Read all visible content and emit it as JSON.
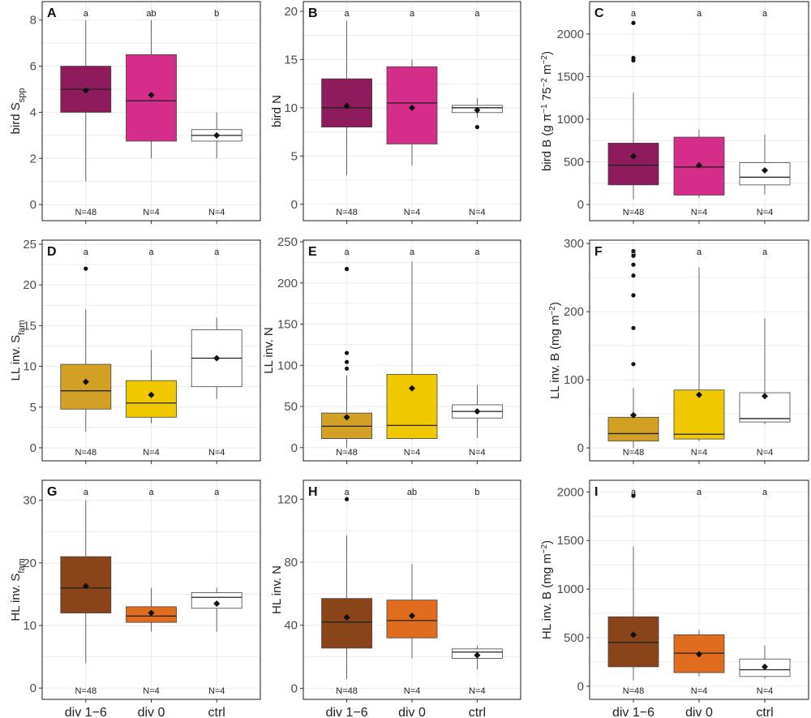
{
  "chart_data": [
    {
      "type": "box",
      "panel_label": "A",
      "ylabel": "bird S",
      "ylabel_sub": "spp",
      "ylabel_tail": "",
      "ylim": [
        -0.7,
        8.8
      ],
      "yticks": [
        0,
        2,
        4,
        6,
        8
      ],
      "ytick_labels": [
        "0",
        "2",
        "4",
        "6",
        "8"
      ],
      "groups": [
        {
          "label": "div 1−6",
          "n": "N=48",
          "letter": "a",
          "color": "#8e1b5b",
          "min": 1,
          "q1": 4,
          "median": 5,
          "q3": 6,
          "max": 8,
          "mean": 4.95,
          "outliers": []
        },
        {
          "label": "div 0",
          "n": "N=4",
          "letter": "ab",
          "color": "#d42d8a",
          "min": 2,
          "q1": 2.75,
          "median": 4.5,
          "q3": 6.5,
          "max": 8,
          "mean": 4.75,
          "outliers": []
        },
        {
          "label": "ctrl",
          "n": "N=4",
          "letter": "b",
          "color": "#ffffff",
          "min": 2,
          "q1": 2.75,
          "median": 3,
          "q3": 3.25,
          "max": 4,
          "mean": 3,
          "outliers": []
        }
      ]
    },
    {
      "type": "box",
      "panel_label": "B",
      "ylabel": "bird N",
      "ylabel_sub": "",
      "ylabel_tail": "",
      "ylim": [
        -1.7,
        21
      ],
      "yticks": [
        0,
        5,
        10,
        15,
        20
      ],
      "ytick_labels": [
        "0",
        "5",
        "10",
        "15",
        "20"
      ],
      "groups": [
        {
          "label": "div 1−6",
          "n": "N=48",
          "letter": "a",
          "color": "#8e1b5b",
          "min": 3,
          "q1": 8,
          "median": 10,
          "q3": 13,
          "max": 19,
          "mean": 10.2,
          "outliers": []
        },
        {
          "label": "div 0",
          "n": "N=4",
          "letter": "a",
          "color": "#d42d8a",
          "min": 4,
          "q1": 6.25,
          "median": 10.5,
          "q3": 14.25,
          "max": 15,
          "mean": 10,
          "outliers": []
        },
        {
          "label": "ctrl",
          "n": "N=4",
          "letter": "a",
          "color": "#ffffff",
          "min": 9,
          "q1": 9.5,
          "median": 10,
          "q3": 10.25,
          "max": 11,
          "mean": 9.75,
          "outliers": [
            8
          ]
        }
      ]
    },
    {
      "type": "box",
      "panel_label": "C",
      "ylabel": "bird B  (g π",
      "ylabel_sub": "",
      "ylabel_tail": "",
      "ylabel_parts": [
        "bird B  (g π",
        "−1",
        " 75",
        "−2",
        " m",
        "−2",
        ")"
      ],
      "ylim": [
        -190,
        2380
      ],
      "yticks": [
        0,
        500,
        1000,
        1500,
        2000
      ],
      "ytick_labels": [
        "0",
        "500",
        "1000",
        "1500",
        "2000"
      ],
      "groups": [
        {
          "label": "div 1−6",
          "n": "N=48",
          "letter": "a",
          "color": "#8e1b5b",
          "min": 60,
          "q1": 230,
          "median": 460,
          "q3": 720,
          "max": 1310,
          "mean": 565,
          "outliers": [
            1690,
            1720,
            2130
          ]
        },
        {
          "label": "div 0",
          "n": "N=4",
          "letter": "a",
          "color": "#d42d8a",
          "min": 80,
          "q1": 110,
          "median": 440,
          "q3": 790,
          "max": 880,
          "mean": 460,
          "outliers": []
        },
        {
          "label": "ctrl",
          "n": "N=4",
          "letter": "a",
          "color": "#ffffff",
          "min": 120,
          "q1": 230,
          "median": 320,
          "q3": 490,
          "max": 820,
          "mean": 400,
          "outliers": []
        }
      ]
    },
    {
      "type": "box",
      "panel_label": "D",
      "ylabel": "LL inv. S",
      "ylabel_sub": "fam",
      "ylabel_tail": "",
      "ylim": [
        -1.6,
        25.5
      ],
      "yticks": [
        0,
        5,
        10,
        15,
        20,
        25
      ],
      "ytick_labels": [
        "0",
        "5",
        "10",
        "15",
        "20",
        "25"
      ],
      "groups": [
        {
          "label": "div 1−6",
          "n": "N=48",
          "letter": "a",
          "color": "#d1a024",
          "min": 2,
          "q1": 4.75,
          "median": 7,
          "q3": 10.25,
          "max": 17,
          "mean": 8.1,
          "outliers": [
            22
          ]
        },
        {
          "label": "div 0",
          "n": "N=4",
          "letter": "a",
          "color": "#f0c800",
          "min": 3,
          "q1": 3.75,
          "median": 5.5,
          "q3": 8.25,
          "max": 12,
          "mean": 6.5,
          "outliers": []
        },
        {
          "label": "ctrl",
          "n": "N=4",
          "letter": "a",
          "color": "#ffffff",
          "min": 6,
          "q1": 7.5,
          "median": 11,
          "q3": 14.5,
          "max": 16,
          "mean": 11,
          "outliers": []
        }
      ]
    },
    {
      "type": "box",
      "panel_label": "E",
      "ylabel": "LL inv. N",
      "ylabel_sub": "",
      "ylabel_tail": "",
      "ylim": [
        -16,
        252
      ],
      "yticks": [
        0,
        50,
        100,
        150,
        200,
        250
      ],
      "ytick_labels": [
        "0",
        "50",
        "100",
        "150",
        "200",
        "250"
      ],
      "groups": [
        {
          "label": "div 1−6",
          "n": "N=48",
          "letter": "a",
          "color": "#d1a024",
          "min": 0,
          "q1": 11,
          "median": 26,
          "q3": 42,
          "max": 88,
          "mean": 37,
          "outliers": [
            96,
            104,
            115,
            217
          ]
        },
        {
          "label": "div 0",
          "n": "N=4",
          "letter": "a",
          "color": "#f0c800",
          "min": 10,
          "q1": 11,
          "median": 27,
          "q3": 89,
          "max": 226,
          "mean": 72,
          "outliers": []
        },
        {
          "label": "ctrl",
          "n": "N=4",
          "letter": "a",
          "color": "#ffffff",
          "min": 12,
          "q1": 36,
          "median": 44,
          "q3": 52,
          "max": 76,
          "mean": 44,
          "outliers": []
        }
      ]
    },
    {
      "type": "box",
      "panel_label": "F",
      "ylabel": "LL inv. B  (mg m",
      "ylabel_sub": "",
      "ylabel_tail": "",
      "ylabel_parts": [
        "LL inv. B  (mg m",
        "−2",
        ")"
      ],
      "ylim": [
        -19,
        305
      ],
      "yticks": [
        0,
        100,
        200,
        300
      ],
      "ytick_labels": [
        "0",
        "100",
        "200",
        "300"
      ],
      "groups": [
        {
          "label": "div 1−6",
          "n": "N=48",
          "letter": "a",
          "color": "#d1a024",
          "min": 0,
          "q1": 10,
          "median": 21,
          "q3": 45,
          "max": 88,
          "mean": 48,
          "outliers": [
            123,
            176,
            224,
            253,
            269,
            282,
            289
          ]
        },
        {
          "label": "div 0",
          "n": "N=4",
          "letter": "a",
          "color": "#f0c800",
          "min": 10,
          "q1": 13,
          "median": 20,
          "q3": 85,
          "max": 265,
          "mean": 78,
          "outliers": []
        },
        {
          "label": "ctrl",
          "n": "N=4",
          "letter": "a",
          "color": "#ffffff",
          "min": 35,
          "q1": 38,
          "median": 43,
          "q3": 81,
          "max": 190,
          "mean": 76,
          "outliers": []
        }
      ]
    },
    {
      "type": "box",
      "panel_label": "G",
      "ylabel": "HL inv. S",
      "ylabel_sub": "fam",
      "ylabel_tail": "",
      "ylim": [
        -1.8,
        33.2
      ],
      "yticks": [
        0,
        10,
        20,
        30
      ],
      "ytick_labels": [
        "0",
        "10",
        "20",
        "30"
      ],
      "groups": [
        {
          "label": "div 1−6",
          "n": "N=48",
          "letter": "a",
          "color": "#8a4419",
          "min": 4,
          "q1": 12,
          "median": 16,
          "q3": 21,
          "max": 30,
          "mean": 16.3,
          "outliers": []
        },
        {
          "label": "div 0",
          "n": "N=4",
          "letter": "a",
          "color": "#e06d1f",
          "min": 9,
          "q1": 10.5,
          "median": 11.5,
          "q3": 13,
          "max": 16,
          "mean": 12,
          "outliers": []
        },
        {
          "label": "ctrl",
          "n": "N=4",
          "letter": "a",
          "color": "#ffffff",
          "min": 9,
          "q1": 12.75,
          "median": 14.5,
          "q3": 15.25,
          "max": 16,
          "mean": 13.5,
          "outliers": []
        }
      ]
    },
    {
      "type": "box",
      "panel_label": "H",
      "ylabel": "HL inv. N",
      "ylabel_sub": "",
      "ylabel_tail": "",
      "ylim": [
        -7,
        132
      ],
      "yticks": [
        0,
        40,
        80,
        120
      ],
      "ytick_labels": [
        "0",
        "40",
        "80",
        "120"
      ],
      "groups": [
        {
          "label": "div 1−6",
          "n": "N=48",
          "letter": "a",
          "color": "#8a4419",
          "min": 6,
          "q1": 25.5,
          "median": 42,
          "q3": 57,
          "max": 97,
          "mean": 45,
          "outliers": [
            120
          ]
        },
        {
          "label": "div 0",
          "n": "N=4",
          "letter": "ab",
          "color": "#e06d1f",
          "min": 19,
          "q1": 32,
          "median": 43,
          "q3": 56,
          "max": 79,
          "mean": 46,
          "outliers": []
        },
        {
          "label": "ctrl",
          "n": "N=4",
          "letter": "b",
          "color": "#ffffff",
          "min": 12,
          "q1": 19,
          "median": 23,
          "q3": 25,
          "max": 27,
          "mean": 21,
          "outliers": []
        }
      ]
    },
    {
      "type": "box",
      "panel_label": "I",
      "ylabel": "HL inv. B  (mg m",
      "ylabel_sub": "",
      "ylabel_tail": "",
      "ylabel_parts": [
        "HL inv. B  (mg m",
        "−2",
        ")"
      ],
      "ylim": [
        -135,
        2120
      ],
      "yticks": [
        0,
        500,
        1000,
        1500,
        2000
      ],
      "ytick_labels": [
        "0",
        "500",
        "1000",
        "1500",
        "2000"
      ],
      "groups": [
        {
          "label": "div 1−6",
          "n": "N=48",
          "letter": "a",
          "color": "#8a4419",
          "min": 60,
          "q1": 200,
          "median": 450,
          "q3": 715,
          "max": 1440,
          "mean": 530,
          "outliers": [
            1960
          ]
        },
        {
          "label": "div 0",
          "n": "N=4",
          "letter": "a",
          "color": "#e06d1f",
          "min": 100,
          "q1": 140,
          "median": 340,
          "q3": 530,
          "max": 580,
          "mean": 330,
          "outliers": []
        },
        {
          "label": "ctrl",
          "n": "N=4",
          "letter": "a",
          "color": "#ffffff",
          "min": 80,
          "q1": 100,
          "median": 170,
          "q3": 280,
          "max": 420,
          "mean": 200,
          "outliers": []
        }
      ]
    }
  ]
}
